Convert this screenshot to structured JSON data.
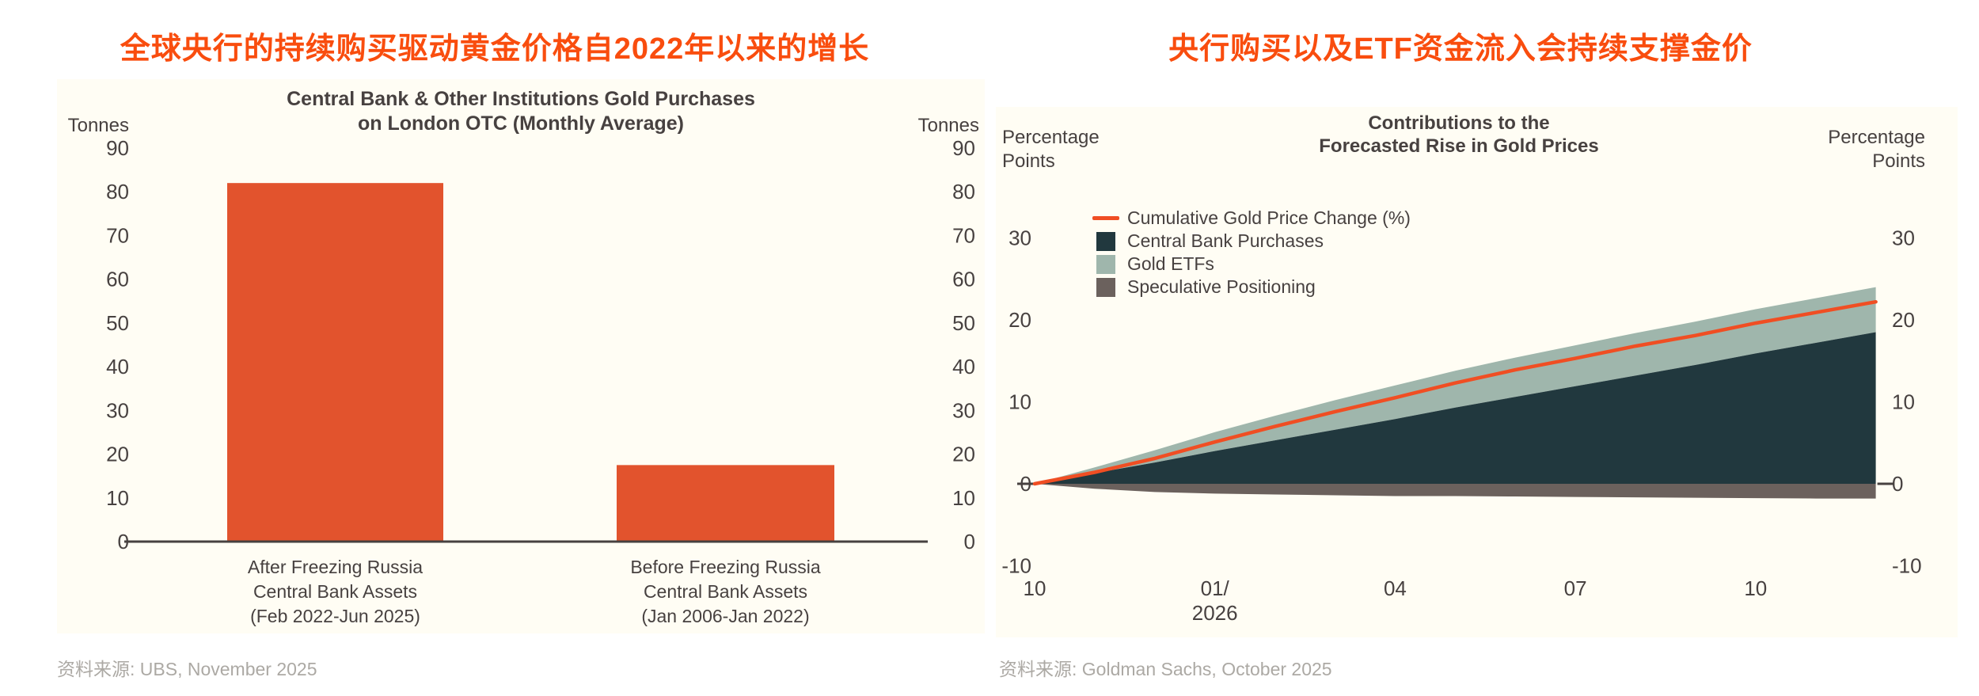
{
  "colors": {
    "accent_orange": "#F94D0E",
    "bar_orange": "#E2532D",
    "line_orange": "#F04E23",
    "dark_teal": "#21383E",
    "sage_green": "#9FB6AC",
    "speculative_gray": "#6B615D",
    "axis_text": "#474140",
    "source_gray": "#ACA9A4",
    "panel_bg": "#FFFDF4"
  },
  "left_panel": {
    "zh_title": "全球央行的持续购买驱动黄金价格自2022年以来的增长",
    "source": "资料来源: UBS, November 2025"
  },
  "right_panel": {
    "zh_title": "央行购买以及ETF资金流入会持续支撑金价",
    "source": "资料来源: Goldman Sachs, October 2025"
  },
  "chart_data": [
    {
      "type": "bar",
      "title_lines": [
        "Central Bank & Other Institutions Gold Purchases",
        "on London OTC (Monthly Average)"
      ],
      "unit_label": "Tonnes",
      "categories": [
        [
          "After Freezing Russia",
          "Central Bank Assets",
          "(Feb 2022-Jun 2025)"
        ],
        [
          "Before Freezing Russia",
          "Central Bank Assets",
          "(Jan 2006-Jan 2022)"
        ]
      ],
      "values": [
        82,
        17.5
      ],
      "y_ticks": [
        90,
        80,
        70,
        60,
        50,
        40,
        30,
        20,
        10,
        0
      ],
      "ylim": [
        0,
        90
      ],
      "grid": false,
      "legend_position": "none",
      "bar_color": "#E2532D"
    },
    {
      "type": "area",
      "title_lines": [
        "Contributions to the",
        "Forecasted Rise in Gold Prices"
      ],
      "unit_label_lines": [
        "Percentage",
        "Points"
      ],
      "x_months": [
        "Oct 2025",
        "Nov 2025",
        "Dec 2025",
        "Jan 2026",
        "Feb 2026",
        "Mar 2026",
        "Apr 2026",
        "May 2026",
        "Jun 2026",
        "Jul 2026",
        "Aug 2026",
        "Sep 2026",
        "Oct 2026",
        "Nov 2026",
        "Dec 2026"
      ],
      "x_tick_labels": [
        {
          "index": 0,
          "lines": [
            "10"
          ]
        },
        {
          "index": 3,
          "lines": [
            "01/",
            "2026"
          ]
        },
        {
          "index": 6,
          "lines": [
            "04"
          ]
        },
        {
          "index": 9,
          "lines": [
            "07"
          ]
        },
        {
          "index": 12,
          "lines": [
            "10"
          ]
        }
      ],
      "y_ticks": [
        30,
        20,
        10,
        0,
        -10
      ],
      "ylim": [
        -10,
        30
      ],
      "grid": false,
      "legend_position": "upper-left",
      "legend": [
        {
          "label": "Cumulative Gold Price Change (%)",
          "swatch": "line",
          "color": "#F04E23"
        },
        {
          "label": "Central Bank Purchases",
          "swatch": "box",
          "color": "#21383E"
        },
        {
          "label": "Gold ETFs",
          "swatch": "box",
          "color": "#9FB6AC"
        },
        {
          "label": "Speculative Positioning",
          "swatch": "box",
          "color": "#6B615D"
        }
      ],
      "series": [
        {
          "name": "Central Bank Purchases",
          "kind": "stacked-area",
          "color": "#21383E",
          "values": [
            0,
            1.3,
            2.6,
            4.0,
            5.3,
            6.6,
            7.9,
            9.3,
            10.6,
            11.9,
            13.2,
            14.5,
            15.9,
            17.2,
            18.5
          ]
        },
        {
          "name": "Gold ETFs",
          "kind": "stacked-area",
          "color": "#9FB6AC",
          "values": [
            0,
            0.7,
            1.5,
            2.3,
            3.0,
            3.6,
            4.1,
            4.5,
            4.8,
            5.0,
            5.2,
            5.3,
            5.4,
            5.45,
            5.5
          ]
        },
        {
          "name": "Speculative Positioning",
          "kind": "stacked-area-negative",
          "color": "#6B615D",
          "values": [
            0,
            -0.6,
            -1.0,
            -1.2,
            -1.3,
            -1.4,
            -1.5,
            -1.5,
            -1.55,
            -1.6,
            -1.65,
            -1.7,
            -1.75,
            -1.8,
            -1.8
          ]
        },
        {
          "name": "Cumulative Gold Price Change (%)",
          "kind": "line",
          "color": "#F04E23",
          "values": [
            0,
            1.4,
            3.1,
            5.1,
            7.0,
            8.8,
            10.5,
            12.3,
            13.9,
            15.3,
            16.8,
            18.1,
            19.6,
            20.9,
            22.2
          ]
        }
      ]
    }
  ]
}
